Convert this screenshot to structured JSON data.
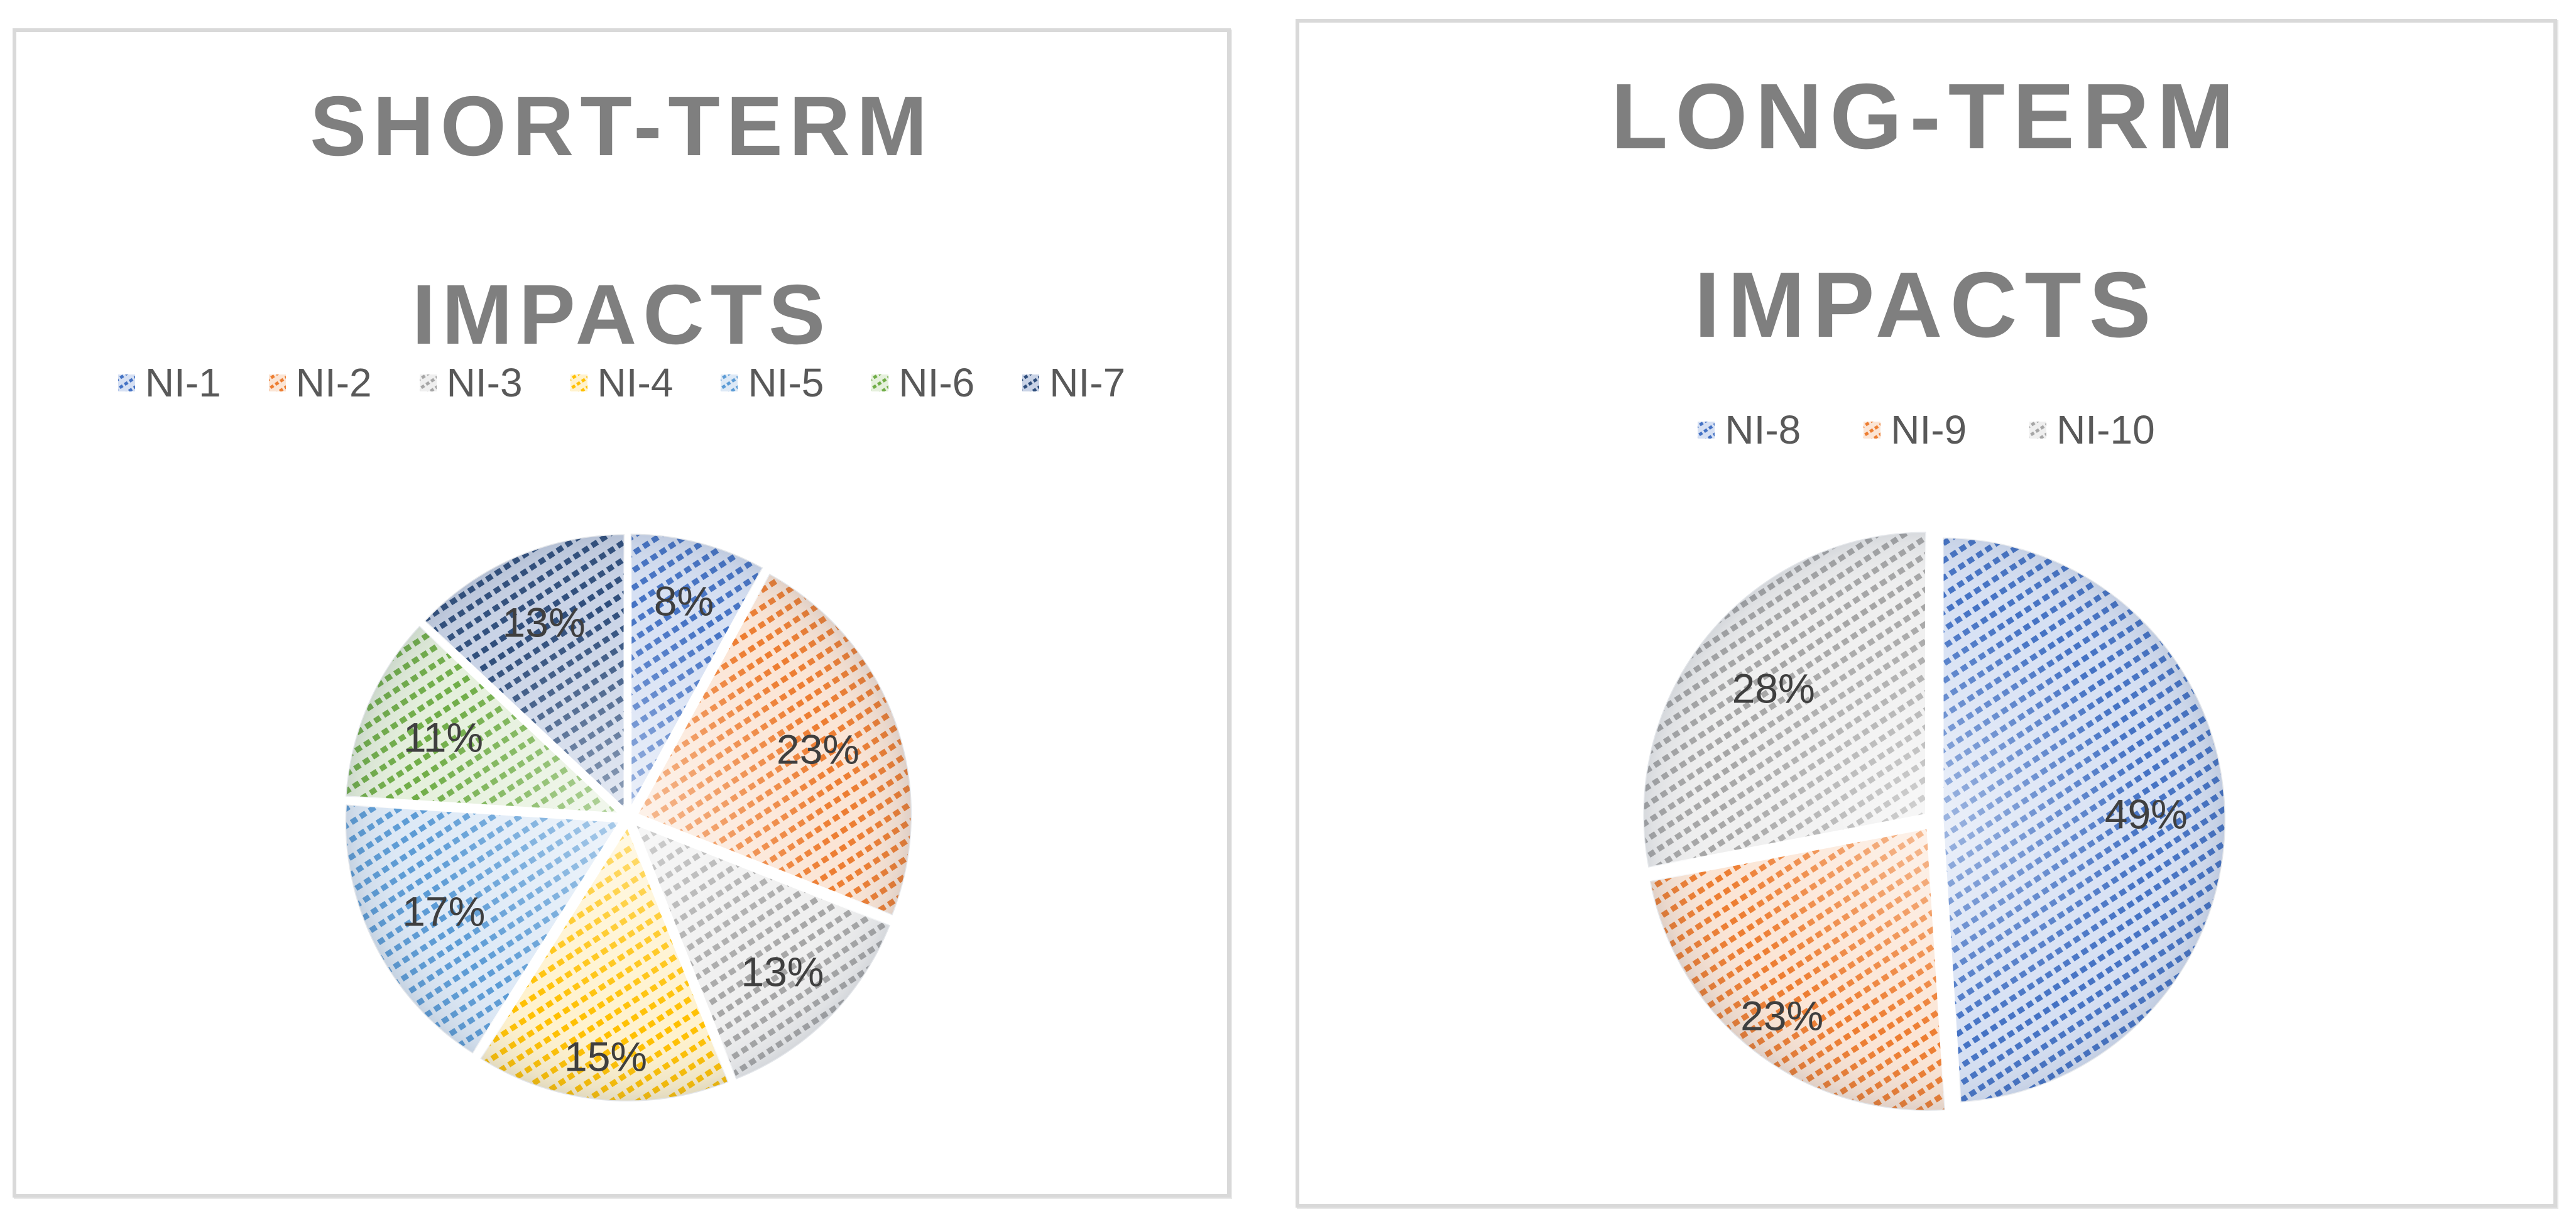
{
  "page": {
    "background": "#FFFFFF",
    "panel_border_color": "#D9D9D9"
  },
  "panels": [
    {
      "title_line1": "SHORT-TERM",
      "title_line2": "IMPACTS",
      "title_color": "#7F7F7F"
    },
    {
      "title_line1": "LONG-TERM",
      "title_line2": "IMPACTS",
      "title_color": "#7F7F7F"
    }
  ],
  "chart_data": [
    {
      "type": "pie",
      "title": "SHORT-TERM IMPACTS",
      "legend_position": "top",
      "start_angle_deg": 0,
      "direction": "clockwise",
      "exploded": true,
      "pattern": "dashed-upward-diagonal",
      "label_color": "#3F3F3F",
      "label_format": "percent",
      "series": [
        {
          "name": "NI-1",
          "value": 8,
          "label": "8%",
          "color": "#4472C4",
          "tint": "#D6E0F3"
        },
        {
          "name": "NI-2",
          "value": 23,
          "label": "23%",
          "color": "#ED7D31",
          "tint": "#FBE5D5"
        },
        {
          "name": "NI-3",
          "value": 13,
          "label": "13%",
          "color": "#A6A6A6",
          "tint": "#EFEFEF"
        },
        {
          "name": "NI-4",
          "value": 15,
          "label": "15%",
          "color": "#FFC000",
          "tint": "#FFF2CD"
        },
        {
          "name": "NI-5",
          "value": 17,
          "label": "17%",
          "color": "#5B9BD5",
          "tint": "#DDE9F6"
        },
        {
          "name": "NI-6",
          "value": 11,
          "label": "11%",
          "color": "#70AD47",
          "tint": "#E5F0DC"
        },
        {
          "name": "NI-7",
          "value": 13,
          "label": "13%",
          "color": "#2E4D7B",
          "tint": "#C9D3E6"
        }
      ],
      "label_radius_fractions": [
        0.78,
        0.7,
        0.76,
        0.84,
        0.72,
        0.7,
        0.74
      ]
    },
    {
      "type": "pie",
      "title": "LONG-TERM IMPACTS",
      "legend_position": "top",
      "start_angle_deg": 0,
      "direction": "clockwise",
      "exploded": true,
      "pattern": "dashed-upward-diagonal",
      "label_color": "#3F3F3F",
      "label_format": "percent",
      "series": [
        {
          "name": "NI-8",
          "value": 49,
          "label": "49%",
          "color": "#4472C4",
          "tint": "#D6E0F3"
        },
        {
          "name": "NI-9",
          "value": 23,
          "label": "23%",
          "color": "#ED7D31",
          "tint": "#FBE5D5"
        },
        {
          "name": "NI-10",
          "value": 28,
          "label": "28%",
          "color": "#A6A6A6",
          "tint": "#EFEFEF"
        }
      ],
      "label_radius_fractions": [
        0.72,
        0.84,
        0.7
      ]
    }
  ]
}
